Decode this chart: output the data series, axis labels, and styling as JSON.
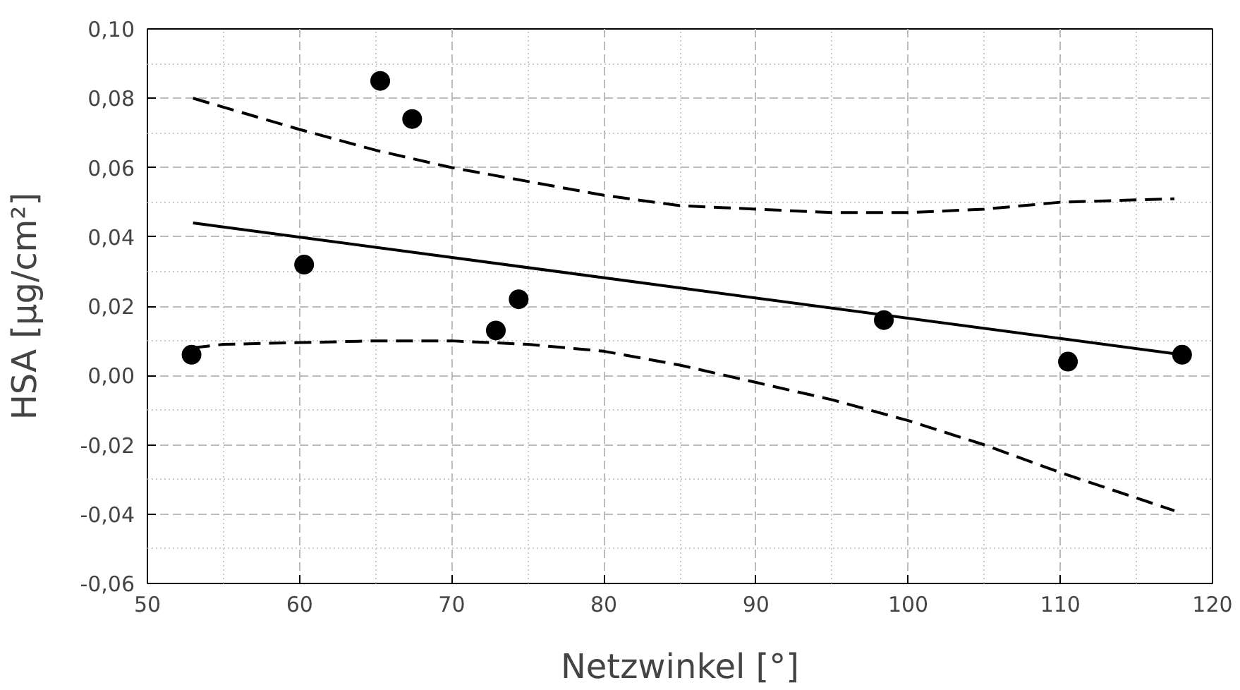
{
  "chart_data": {
    "type": "scatter",
    "xlabel": "Netzwinkel [°]",
    "ylabel": "HSA [µg/cm²]",
    "xlim": [
      50,
      120
    ],
    "xticks": [
      50,
      60,
      70,
      80,
      90,
      100,
      110,
      120
    ],
    "ylim": [
      -0.06,
      0.1
    ],
    "yticks": [
      {
        "value": -0.06,
        "label": "-0,06"
      },
      {
        "value": -0.04,
        "label": "-0,04"
      },
      {
        "value": -0.02,
        "label": "-0,02"
      },
      {
        "value": 0,
        "label": "0,00"
      },
      {
        "value": 0.02,
        "label": "0,02"
      },
      {
        "value": 0.04,
        "label": "0,04"
      },
      {
        "value": 0.06,
        "label": "0,06"
      },
      {
        "value": 0.08,
        "label": "0,08"
      },
      {
        "value": 0.1,
        "label": "0,10"
      }
    ],
    "grid": true,
    "series": [
      {
        "marker": "circle",
        "color": "#000000",
        "x": [
          52.9,
          60.3,
          65.3,
          67.4,
          72.9,
          74.4,
          98.4,
          110.5,
          118.0
        ],
        "values": [
          0.006,
          0.032,
          0.085,
          0.074,
          0.013,
          0.022,
          0.016,
          0.004,
          0.006
        ]
      },
      {
        "type": "line",
        "line_style": "solid",
        "color": "#000000",
        "x": [
          53,
          118
        ],
        "values": [
          0.044,
          0.006
        ]
      },
      {
        "type": "line",
        "line_style": "dashed",
        "color": "#000000",
        "x": [
          53,
          60,
          65,
          70,
          75,
          80,
          85,
          90,
          95,
          100,
          105,
          110,
          117.5
        ],
        "values": [
          0.08,
          0.071,
          0.065,
          0.06,
          0.056,
          0.052,
          0.049,
          0.048,
          0.047,
          0.047,
          0.048,
          0.05,
          0.051
        ]
      },
      {
        "type": "line",
        "line_style": "dashed",
        "color": "#000000",
        "x": [
          53,
          55,
          60,
          65,
          70,
          75,
          80,
          85,
          90,
          95,
          100,
          105,
          110,
          117.5
        ],
        "values": [
          0.008,
          0.009,
          0.0095,
          0.01,
          0.01,
          0.009,
          0.007,
          0.003,
          -0.002,
          -0.007,
          -0.013,
          -0.02,
          -0.028,
          -0.039
        ]
      }
    ]
  }
}
